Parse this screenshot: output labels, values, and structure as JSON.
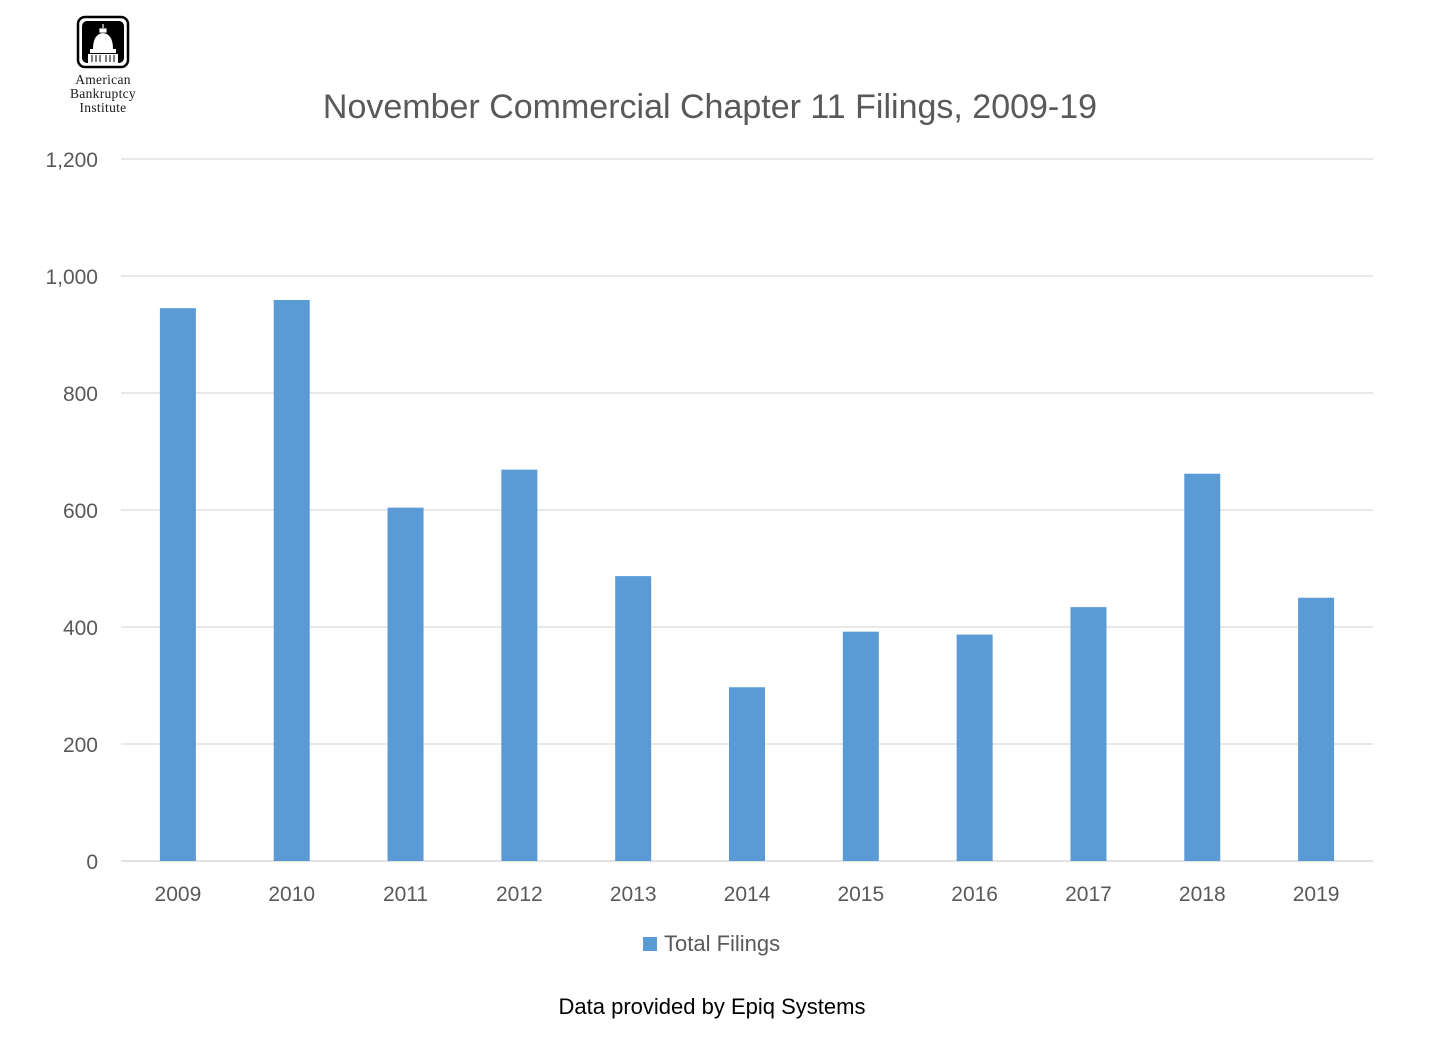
{
  "logo": {
    "line1": "American",
    "line2": "Bankruptcy",
    "line3": "Institute"
  },
  "source_note": "Data provided by Epiq Systems",
  "colors": {
    "bar": "#5b9bd5",
    "grid": "#d9d9d9",
    "text": "#595959"
  },
  "chart_data": {
    "type": "bar",
    "title": "November Commercial Chapter 11 Filings, 2009-19",
    "xlabel": "",
    "ylabel": "",
    "categories": [
      "2009",
      "2010",
      "2011",
      "2012",
      "2013",
      "2014",
      "2015",
      "2016",
      "2017",
      "2018",
      "2019"
    ],
    "series": [
      {
        "name": "Total Filings",
        "values": [
          945,
          959,
          604,
          669,
          487,
          297,
          392,
          387,
          434,
          662,
          450
        ]
      }
    ],
    "ylim": [
      0,
      1200
    ],
    "yticks": [
      "0",
      "200",
      "400",
      "600",
      "800",
      "1,000",
      "1,200"
    ],
    "ytick_values": [
      0,
      200,
      400,
      600,
      800,
      1000,
      1200
    ],
    "grid": true,
    "legend_position": "bottom"
  }
}
